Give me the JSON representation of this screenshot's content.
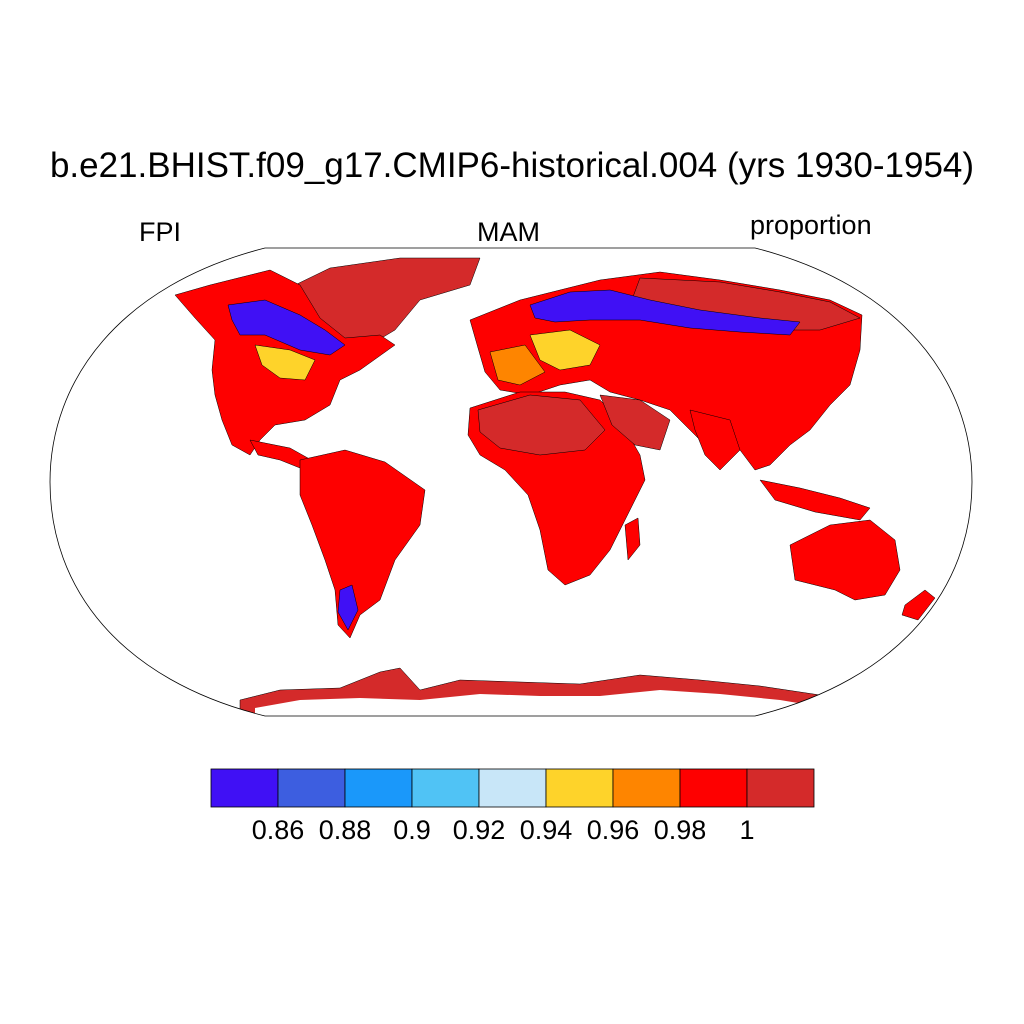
{
  "title": "b.e21.BHIST.f09_g17.CMIP6-historical.004 (yrs 1930-1954)",
  "left_subtitle": "FPI",
  "center_subtitle": "MAM",
  "right_subtitle": "proportion",
  "colorbar": {
    "colors": [
      "#4010f5",
      "#3d5ee0",
      "#1a98fa",
      "#50c3f5",
      "#c8e6f8",
      "#fed32a",
      "#fe8500",
      "#fe0000",
      "#d42a2a"
    ],
    "labels": [
      "0.86",
      "0.88",
      "0.9",
      "0.92",
      "0.94",
      "0.96",
      "0.98",
      "1"
    ]
  },
  "map_colors": {
    "land_high": "#fe0000",
    "ice": "#d42a2a",
    "low": "#4010f5",
    "mid_low": "#1a98fa",
    "mid": "#fed32a",
    "mid_high": "#fe8500",
    "coast": "#000000",
    "frame": "#000000"
  }
}
